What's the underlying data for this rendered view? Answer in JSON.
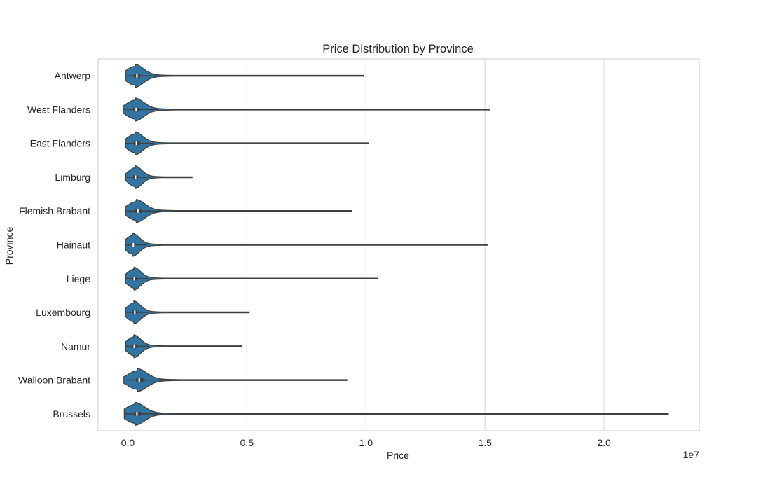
{
  "chart_data": {
    "type": "violin",
    "orientation": "horizontal",
    "title": "Price Distribution by Province",
    "xlabel": "Price",
    "ylabel": "Province",
    "x_offset_label": "1e7",
    "xlim": [
      -0.125,
      2.4
    ],
    "x_ticks": [
      0.0,
      0.5,
      1.0,
      1.5,
      2.0
    ],
    "x_tick_labels": [
      "0.0",
      "0.5",
      "1.0",
      "1.5",
      "2.0"
    ],
    "grid": "x",
    "colors": {
      "violin": "#3274a1",
      "edge": "#3f3f3f",
      "grid": "#d9d9d9",
      "frame": "#cccccc",
      "median": "#ffffff"
    },
    "categories": [
      "Antwerp",
      "West Flanders",
      "East Flanders",
      "Limburg",
      "Flemish Brabant",
      "Hainaut",
      "Liege",
      "Luxembourg",
      "Namur",
      "Walloon Brabant",
      "Brussels"
    ],
    "series": [
      {
        "category": "Antwerp",
        "min": -0.01,
        "q1": 0.025,
        "median": 0.038,
        "q3": 0.052,
        "whisker_high": 0.12,
        "max": 0.99,
        "peak": 0.03
      },
      {
        "category": "West Flanders",
        "min": -0.02,
        "q1": 0.022,
        "median": 0.035,
        "q3": 0.05,
        "whisker_high": 0.13,
        "max": 1.52,
        "peak": 0.03
      },
      {
        "category": "East Flanders",
        "min": -0.01,
        "q1": 0.025,
        "median": 0.036,
        "q3": 0.05,
        "whisker_high": 0.11,
        "max": 1.01,
        "peak": 0.03
      },
      {
        "category": "Limburg",
        "min": -0.01,
        "q1": 0.022,
        "median": 0.032,
        "q3": 0.043,
        "whisker_high": 0.1,
        "max": 0.27,
        "peak": 0.03
      },
      {
        "category": "Flemish Brabant",
        "min": -0.01,
        "q1": 0.03,
        "median": 0.042,
        "q3": 0.058,
        "whisker_high": 0.14,
        "max": 0.94,
        "peak": 0.035
      },
      {
        "category": "Hainaut",
        "min": -0.01,
        "q1": 0.015,
        "median": 0.023,
        "q3": 0.032,
        "whisker_high": 0.08,
        "max": 1.51,
        "peak": 0.02
      },
      {
        "category": "Liege",
        "min": -0.01,
        "q1": 0.018,
        "median": 0.027,
        "q3": 0.037,
        "whisker_high": 0.09,
        "max": 1.05,
        "peak": 0.025
      },
      {
        "category": "Luxembourg",
        "min": -0.01,
        "q1": 0.02,
        "median": 0.029,
        "q3": 0.04,
        "whisker_high": 0.09,
        "max": 0.51,
        "peak": 0.025
      },
      {
        "category": "Namur",
        "min": -0.01,
        "q1": 0.018,
        "median": 0.027,
        "q3": 0.037,
        "whisker_high": 0.09,
        "max": 0.48,
        "peak": 0.025
      },
      {
        "category": "Walloon Brabant",
        "min": -0.02,
        "q1": 0.035,
        "median": 0.048,
        "q3": 0.065,
        "whisker_high": 0.16,
        "max": 0.92,
        "peak": 0.04
      },
      {
        "category": "Brussels",
        "min": -0.015,
        "q1": 0.025,
        "median": 0.038,
        "q3": 0.055,
        "whisker_high": 0.15,
        "max": 2.27,
        "peak": 0.03
      }
    ]
  }
}
